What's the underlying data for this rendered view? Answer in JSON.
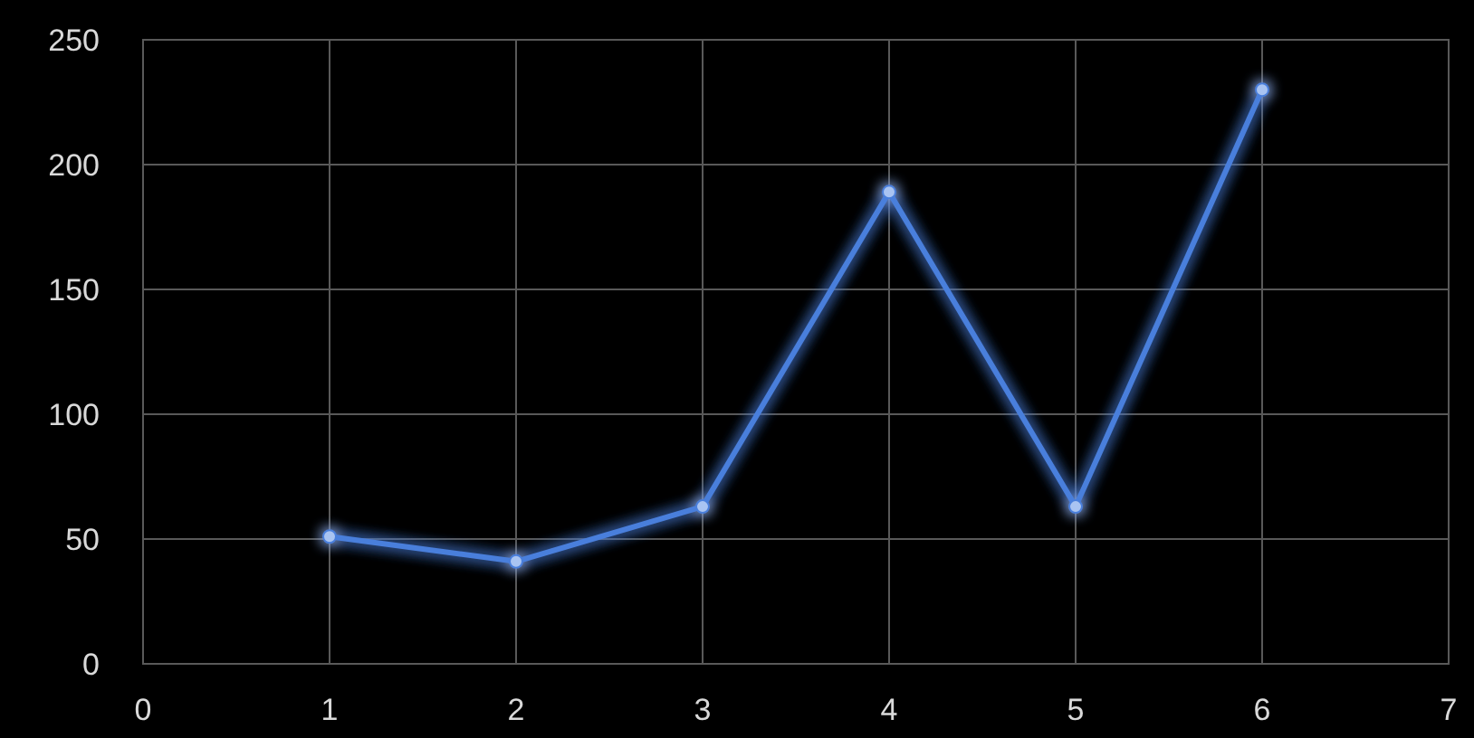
{
  "chart_data": {
    "type": "line",
    "x": [
      1,
      2,
      3,
      4,
      5,
      6
    ],
    "series": [
      {
        "color": "#4a7fdc",
        "values": [
          51,
          41,
          63,
          189,
          63,
          230
        ]
      }
    ],
    "xlim": [
      0,
      7
    ],
    "xticks": [
      0,
      1,
      2,
      3,
      4,
      5,
      6,
      7
    ],
    "ylim": [
      0,
      250
    ],
    "yticks": [
      0,
      50,
      100,
      150,
      200,
      250
    ],
    "grid": true,
    "marker": "circle",
    "line_style": "solid"
  }
}
